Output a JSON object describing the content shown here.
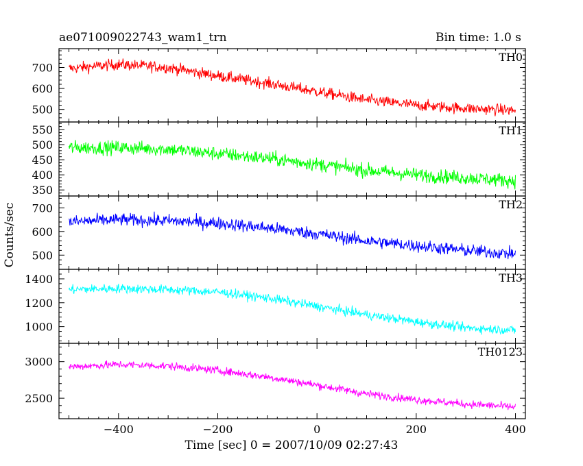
{
  "header": {
    "title": "ae071009022743_wam1_trn",
    "bin_time": "Bin time: 1.0 s"
  },
  "chart_data": {
    "type": "line",
    "title": "ae071009022743_wam1_trn",
    "subtitle": "Bin time: 1.0 s",
    "xlabel": "Time [sec] 0 = 2007/10/09 02:27:43",
    "ylabel": "Counts/sec",
    "xlim": [
      -520,
      420
    ],
    "x_ticks": [
      -400,
      -200,
      0,
      200,
      400
    ],
    "x_range": [
      -500,
      400
    ],
    "panels": [
      {
        "name": "TH0",
        "color": "#ff0000",
        "ylim": [
          440,
          790
        ],
        "y_ticks": [
          500,
          600,
          700
        ],
        "trend_x": [
          -500,
          -400,
          -300,
          -200,
          -100,
          0,
          100,
          200,
          300,
          400
        ],
        "trend_y": [
          695,
          715,
          700,
          660,
          625,
          585,
          545,
          520,
          505,
          495
        ],
        "noise_amplitude": 35
      },
      {
        "name": "TH1",
        "color": "#00ff00",
        "ylim": [
          330,
          575
        ],
        "y_ticks": [
          350,
          400,
          450,
          500,
          550
        ],
        "trend_x": [
          -500,
          -400,
          -300,
          -200,
          -100,
          0,
          100,
          200,
          300,
          400
        ],
        "trend_y": [
          490,
          490,
          485,
          470,
          455,
          435,
          415,
          400,
          390,
          380
        ],
        "noise_amplitude": 30
      },
      {
        "name": "TH2",
        "color": "#0000ff",
        "ylim": [
          440,
          750
        ],
        "y_ticks": [
          500,
          600,
          700
        ],
        "trend_x": [
          -500,
          -400,
          -300,
          -200,
          -100,
          0,
          100,
          200,
          300,
          400
        ],
        "trend_y": [
          640,
          650,
          645,
          635,
          615,
          590,
          560,
          540,
          520,
          505
        ],
        "noise_amplitude": 35
      },
      {
        "name": "TH3",
        "color": "#00ffff",
        "ylim": [
          860,
          1480
        ],
        "y_ticks": [
          1000,
          1200,
          1400
        ],
        "trend_x": [
          -500,
          -400,
          -300,
          -200,
          -100,
          0,
          100,
          200,
          300,
          400
        ],
        "trend_y": [
          1310,
          1320,
          1310,
          1290,
          1240,
          1170,
          1100,
          1040,
          990,
          970
        ],
        "noise_amplitude": 50
      },
      {
        "name": "TH0123",
        "color": "#ff00ff",
        "ylim": [
          2220,
          3250
        ],
        "y_ticks": [
          2500,
          3000
        ],
        "trend_x": [
          -500,
          -400,
          -300,
          -200,
          -100,
          0,
          100,
          200,
          300,
          400
        ],
        "trend_y": [
          2930,
          2960,
          2940,
          2880,
          2790,
          2680,
          2560,
          2480,
          2420,
          2380
        ],
        "noise_amplitude": 70
      }
    ]
  }
}
